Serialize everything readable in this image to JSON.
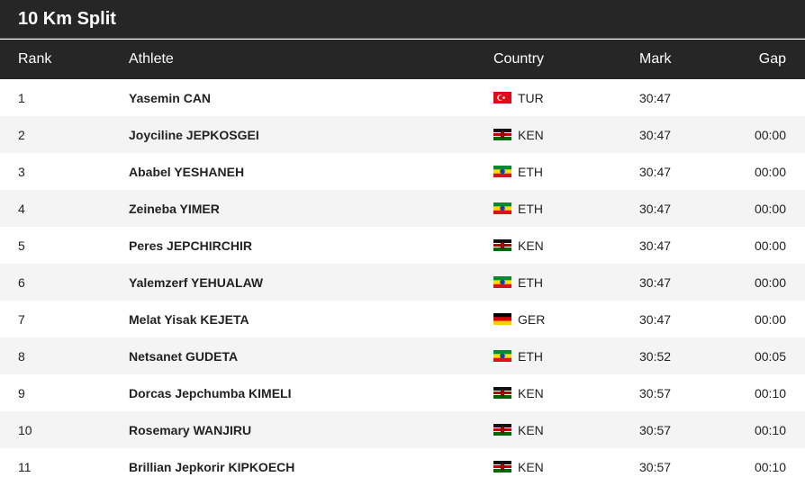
{
  "title": "10 Km Split",
  "header": [
    "Rank",
    "Athlete",
    "Country",
    "Mark",
    "Gap"
  ],
  "rows": [
    [
      "1",
      "Yasemin CAN",
      "TUR",
      "30:47",
      null
    ],
    [
      "2",
      "Joyciline JEPKOSGEI",
      "KEN",
      "30:47",
      "00:00"
    ],
    [
      "3",
      "Ababel YESHANEH",
      "ETH",
      "30:47",
      "00:00"
    ],
    [
      "4",
      "Zeineba YIMER",
      "ETH",
      "30:47",
      "00:00"
    ],
    [
      "5",
      "Peres JEPCHIRCHIR",
      "KEN",
      "30:47",
      "00:00"
    ],
    [
      "6",
      "Yalemzerf YEHUALAW",
      "ETH",
      "30:47",
      "00:00"
    ],
    [
      "7",
      "Melat Yisak KEJETA",
      "GER",
      "30:47",
      "00:00"
    ],
    [
      "8",
      "Netsanet GUDETA",
      "ETH",
      "30:52",
      "00:05"
    ],
    [
      "9",
      "Dorcas Jepchumba KIMELI",
      "KEN",
      "30:57",
      "00:10"
    ],
    [
      "10",
      "Rosemary WANJIRU",
      "KEN",
      "30:57",
      "00:10"
    ],
    [
      "11",
      "Brillian Jepkorir KIPKOECH",
      "KEN",
      "30:57",
      "00:10"
    ]
  ]
}
